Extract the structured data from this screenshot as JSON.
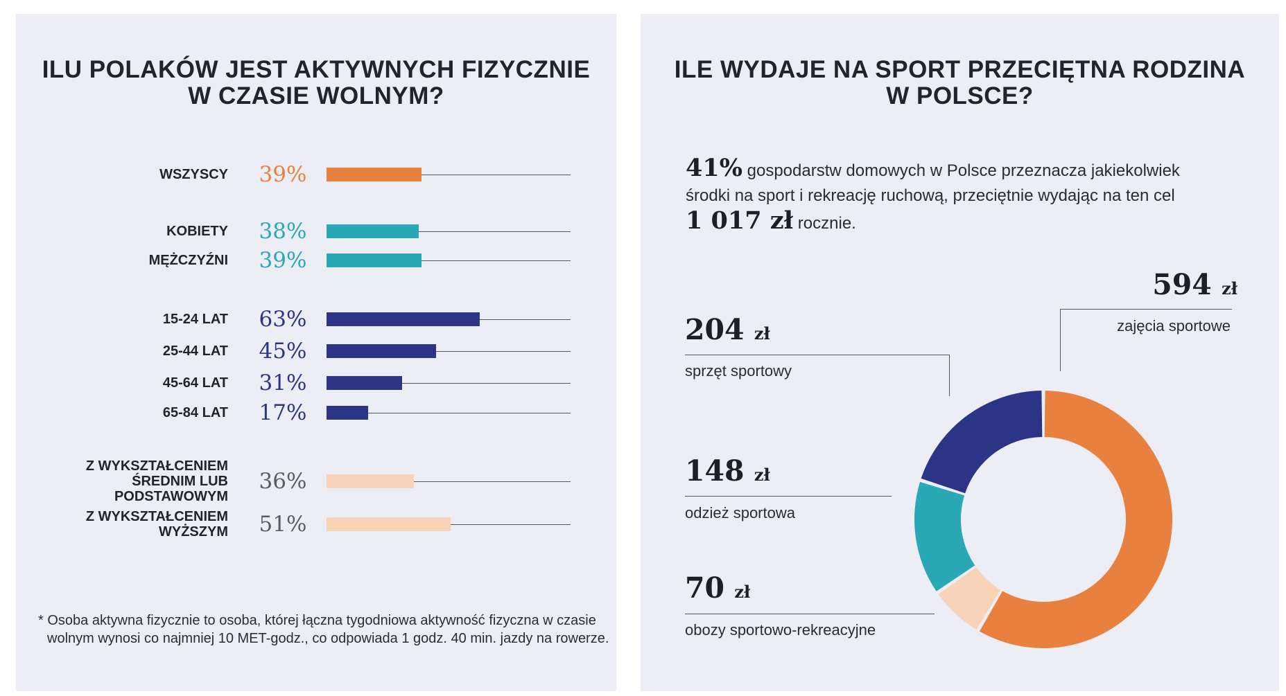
{
  "left": {
    "title_lines": [
      "ILU POLAKÓW JEST AKTYWNYCH FIZYCZNIE",
      "W CZASIE WOLNYM?"
    ],
    "footnote_lines": [
      "* Osoba aktywna fizycznie to osoba, której łączna tygodniowa aktywność fizyczna w czasie",
      "wolnym wynosi co najmniej 10 MET-godz., co odpowiada 1 godz. 40 min. jazdy na rowerze."
    ]
  },
  "right": {
    "title_lines": [
      "ILE WYDAJE NA SPORT PRZECIĘTNA RODZINA",
      "W POLSCE?"
    ],
    "intro": {
      "pct": "41%",
      "text1": " gospodarstw domowych w Polsce przeznacza jakiekolwiek",
      "text2": "środki na sport i rekreację ruchową, przeciętnie wydając na ten cel",
      "amount": "1 017 zł",
      "text3": " rocznie."
    }
  },
  "chart_data": [
    {
      "type": "bar",
      "orientation": "horizontal",
      "title": "ILU POLAKÓW JEST AKTYWNYCH FIZYCZNIE W CZASIE WOLNYM?",
      "xlim": [
        0,
        100
      ],
      "grid": false,
      "categories": [
        [
          "WSZYSCY"
        ],
        [
          "KOBIETY"
        ],
        [
          "MĘŻCZYŹNI"
        ],
        [
          "15-24 LAT"
        ],
        [
          "25-44 LAT"
        ],
        [
          "45-64 LAT"
        ],
        [
          "65-84 LAT"
        ],
        [
          "Z WYKSZTAŁCENIEM",
          "ŚREDNIM LUB",
          "PODSTAWOWYM"
        ],
        [
          "Z WYKSZTAŁCENIEM",
          "WYŻSZYM"
        ]
      ],
      "values": [
        39,
        38,
        39,
        63,
        45,
        31,
        17,
        36,
        51
      ],
      "value_labels": [
        "39%",
        "38%",
        "39%",
        "63%",
        "45%",
        "31%",
        "17%",
        "36%",
        "51%"
      ],
      "bar_colors": [
        "#e8803f",
        "#2aa8b6",
        "#2aa8b6",
        "#2c3585",
        "#2c3585",
        "#2c3585",
        "#2c3585",
        "#f8d3b8",
        "#f8d3b8"
      ],
      "label_colors": [
        "#e8803f",
        "#2aa8b6",
        "#2aa8b6",
        "#2c3585",
        "#2c3585",
        "#2c3585",
        "#2c3585",
        "#5a5c64",
        "#5a5c64"
      ]
    },
    {
      "type": "pie",
      "subtype": "donut",
      "title": "ILE WYDAJE NA SPORT PRZECIĘTNA RODZINA W POLSCE?",
      "unit": "zł",
      "slices": [
        {
          "label": "zajęcia sportowe",
          "value": 594,
          "value_label": "594",
          "color": "#e8803f"
        },
        {
          "label": "obozy sportowo-rekreacyjne",
          "value": 70,
          "value_label": "70",
          "color": "#f8d3b8"
        },
        {
          "label": "odzież sportowa",
          "value": 148,
          "value_label": "148",
          "color": "#2aa8b6"
        },
        {
          "label": "sprzęt sportowy",
          "value": 204,
          "value_label": "204",
          "color": "#2c3585"
        }
      ]
    }
  ]
}
